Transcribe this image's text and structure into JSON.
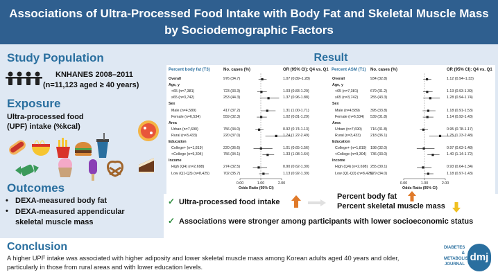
{
  "title": "Associations of Ultra-Processed Food Intake with Body Fat and Skeletal Muscle Mass by Sociodemographic Factors",
  "left": {
    "study_heading": "Study Population",
    "study_name": "KNHANES 2008–2011",
    "study_n": "(n=11,123 aged ≥ 40 years)",
    "exposure_heading": "Exposure",
    "exposure_text": "Ultra-processed food (UPF) intake (%kcal)",
    "outcomes_heading": "Outcomes",
    "outcomes": [
      "DEXA-measured body fat",
      "DEXA-measured appendicular skeletal muscle mass"
    ]
  },
  "result": {
    "heading": "Result",
    "panels": [
      {
        "label": "Percent body fat (T3)",
        "col_cases": "No. cases (%)",
        "col_or": "OR (95% CI): Q4 vs. Q1",
        "xlabel": "Odds Ratio (95% CI)",
        "ticks": [
          "0.00",
          "1.00",
          "2.00"
        ],
        "rows": [
          {
            "label": "Overall",
            "group": true,
            "cases": "976 (34.7)",
            "ci": "1.07 (0.89–1.28)",
            "or": 1.07,
            "lo": 0.89,
            "hi": 1.28
          },
          {
            "label": "Age, y",
            "group": true,
            "cases": "",
            "ci": ""
          },
          {
            "label": "<65 (n=7,381)",
            "group": false,
            "cases": "723 (33.3)",
            "ci": "1.03 (0.83-1.29)",
            "or": 1.03,
            "lo": 0.83,
            "hi": 1.29
          },
          {
            "label": "≥65 (n=3,742)",
            "group": false,
            "cases": "253 (44.3)",
            "ci": "1.37 (0.96-1.88)",
            "or": 1.37,
            "lo": 0.96,
            "hi": 1.88
          },
          {
            "label": "Sex",
            "group": true,
            "cases": "",
            "ci": ""
          },
          {
            "label": "Male (n=4,589)",
            "group": false,
            "cases": "417 (37.2)",
            "ci": "1.31 (1.00-1.71)",
            "or": 1.31,
            "lo": 1.0,
            "hi": 1.71
          },
          {
            "label": "Female (n=6,534)",
            "group": false,
            "cases": "559 (32.3)",
            "ci": "1.02 (0.81-1.29)",
            "or": 1.02,
            "lo": 0.81,
            "hi": 1.29
          },
          {
            "label": "Area",
            "group": true,
            "cases": "",
            "ci": ""
          },
          {
            "label": "Urban (n=7,690)",
            "group": false,
            "cases": "756 (34.0)",
            "ci": "0.92 (0.74-1.13)",
            "or": 0.92,
            "lo": 0.74,
            "hi": 1.13
          },
          {
            "label": "Rural (n=3,433)",
            "group": false,
            "cases": "220 (37.0)",
            "ci": "1.74 (1.22-2.49)",
            "or": 1.74,
            "lo": 1.22,
            "hi": 2.49
          },
          {
            "label": "Education",
            "group": true,
            "cases": "",
            "ci": ""
          },
          {
            "label": "College+ (n=1,819)",
            "group": false,
            "cases": "220 (36.6)",
            "ci": "1.01 (0.65-1.56)",
            "or": 1.01,
            "lo": 0.65,
            "hi": 1.56
          },
          {
            "label": "<College (n=9,304)",
            "group": false,
            "cases": "756 (34.1)",
            "ci": "1.33 (1.08-1.64)",
            "or": 1.33,
            "lo": 1.08,
            "hi": 1.64
          },
          {
            "label": "Income",
            "group": true,
            "cases": "",
            "ci": ""
          },
          {
            "label": "High (Q4) (n=2,698)",
            "group": false,
            "cases": "274 (32.5)",
            "ci": "0.90 (0.62-1.30)",
            "or": 0.9,
            "lo": 0.62,
            "hi": 1.3
          },
          {
            "label": "Low (Q1-Q3) (n=8,425)",
            "group": false,
            "cases": "702 (35.7)",
            "ci": "1.13 (0.92-1.39)",
            "or": 1.13,
            "lo": 0.92,
            "hi": 1.39
          }
        ]
      },
      {
        "label": "Percent ASM (T1)",
        "col_cases": "No. cases (%)",
        "col_or": "OR (95% CI): Q4 vs. Q1",
        "xlabel": "Odds Ratio (95% CI)",
        "ticks": [
          "0.00",
          "1.00",
          "2.00"
        ],
        "rows": [
          {
            "label": "Overall",
            "group": true,
            "cases": "934 (32.8)",
            "ci": "1.12 (0.94–1.33)",
            "or": 1.12,
            "lo": 0.94,
            "hi": 1.33
          },
          {
            "label": "Age, y",
            "group": true,
            "cases": "",
            "ci": ""
          },
          {
            "label": "<65 (n=7,381)",
            "group": false,
            "cases": "679 (31.2)",
            "ci": "1.13 (0.93-1.39)",
            "or": 1.13,
            "lo": 0.93,
            "hi": 1.39
          },
          {
            "label": "≥65 (n=3,742)",
            "group": false,
            "cases": "255 (43.3)",
            "ci": "1.28 (0.94-1.74)",
            "or": 1.28,
            "lo": 0.94,
            "hi": 1.74
          },
          {
            "label": "Sex",
            "group": true,
            "cases": "",
            "ci": ""
          },
          {
            "label": "Male (n=4,589)",
            "group": false,
            "cases": "395 (33.8)",
            "ci": "1.18 (0.91-1.53)",
            "or": 1.18,
            "lo": 0.91,
            "hi": 1.53
          },
          {
            "label": "Female (n=6,534)",
            "group": false,
            "cases": "539 (31.8)",
            "ci": "1.14 (0.92-1.43)",
            "or": 1.14,
            "lo": 0.92,
            "hi": 1.43
          },
          {
            "label": "Area",
            "group": true,
            "cases": "",
            "ci": ""
          },
          {
            "label": "Urban (n=7,690)",
            "group": false,
            "cases": "716 (31.8)",
            "ci": "0.95 (0.78-1.17)",
            "or": 0.95,
            "lo": 0.78,
            "hi": 1.17
          },
          {
            "label": "Rural (n=3,433)",
            "group": false,
            "cases": "218 (36.1)",
            "ci": "1.75 (1.23-2.48)",
            "or": 1.75,
            "lo": 1.23,
            "hi": 2.48
          },
          {
            "label": "Education",
            "group": true,
            "cases": "",
            "ci": ""
          },
          {
            "label": "College+ (n=1,819)",
            "group": false,
            "cases": "198 (32.0)",
            "ci": "0.97 (0.63-1.48)",
            "or": 0.97,
            "lo": 0.63,
            "hi": 1.48
          },
          {
            "label": "<College (n=9,304)",
            "group": false,
            "cases": "736 (33.0)",
            "ci": "1.40 (1.14-1.72)",
            "or": 1.4,
            "lo": 1.14,
            "hi": 1.72
          },
          {
            "label": "Income",
            "group": true,
            "cases": "",
            "ci": ""
          },
          {
            "label": "High (Q4) (n=2,698)",
            "group": false,
            "cases": "255 (30.1)",
            "ci": "0.93 (0.64-1.34)",
            "or": 0.93,
            "lo": 0.64,
            "hi": 1.34
          },
          {
            "label": "Low (Q1-Q3) (n=8,425)",
            "group": false,
            "cases": "679 (34.0)",
            "ci": "1.18 (0.97-1.43)",
            "or": 1.18,
            "lo": 0.97,
            "hi": 1.43
          }
        ]
      }
    ]
  },
  "summary": {
    "upf": "Ultra-processed food intake",
    "body_fat": "Percent body fat",
    "muscle": "Percent skeletal muscle mass",
    "stronger": "Associations were stronger among participants with lower socioeconomic status"
  },
  "conclusion": {
    "heading": "Conclusion",
    "text": "A higher UPF intake was associated with higher adiposity and lower skeletal muscle mass among Korean adults aged 40 years and older, particularly in those from rural areas and with lower education levels."
  },
  "logo": {
    "mark": "dmj",
    "line1": "DIABETES &",
    "line2": "METABOLISM JOURNAL"
  },
  "colors": {
    "header": "#2f5f8f",
    "accent": "#2a6f9f",
    "panel_bg": "#dfe8f3",
    "arrow_up": "#e07a2a",
    "arrow_down": "#f0c020"
  }
}
